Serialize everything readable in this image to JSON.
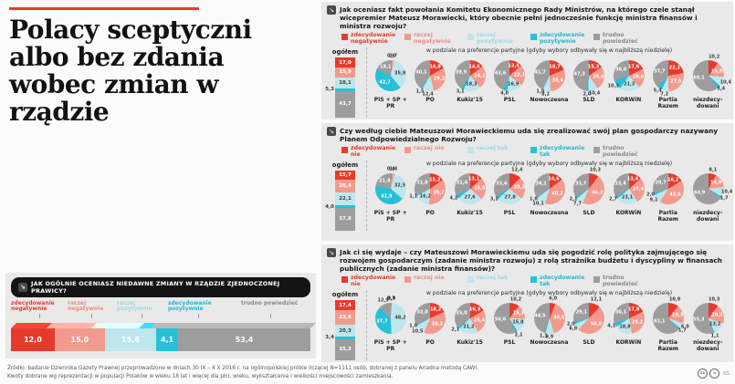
{
  "title": {
    "line1": "Polacy sceptyczni",
    "line2": "albo bez zdania",
    "line3": "wobec zmian w rządzie"
  },
  "colors": {
    "accent_red": "#e63b2c",
    "palette": [
      "#e63b2c",
      "#f29a8e",
      "#bfe6ec",
      "#25c1d9",
      "#9d9d9d"
    ],
    "legend_text": [
      "#e63b2c",
      "#ef8d80",
      "#9fd9e4",
      "#1fb9d2",
      "#8a8a8a"
    ],
    "panel_bg": "#e9e9e9",
    "header_pill_bg": "#141414"
  },
  "footer": {
    "line1": "Źródło: badanie Dziennika Gazety Prawnej przeprowadzone w dniach 30 IX – 4 X 2016 r. na ogólnopolskiej próbie liczącej N=1111 osób, dobranej z panelu Ariadna metodą CAWI.",
    "line2": "Kwoty dobrane wg reprezentacji w populacji Polaków w wieku 18 lat i więcej dla płci, wieku, wykształcenia i wielkości miejscowości zamieszkania.",
    "cc1": "cc",
    "cc2": "=",
    "credit": "NS"
  },
  "chart_data": [
    {
      "type": "bar",
      "title": "Jak ogólnie oceniasz niedawne zmiany w rządzie Zjednoczonej Prawicy?",
      "categories": [
        "zdecydowanie negatywnie",
        "raczej negatywnie",
        "raczej pozytywnie",
        "zdecydowanie pozytywnie",
        "trudno powiedzieć"
      ],
      "values": [
        12.0,
        15.0,
        15.6,
        4.1,
        53.4
      ],
      "xlabel": "",
      "ylabel": "",
      "legend_position": "top",
      "grid": false
    },
    {
      "type": "pie",
      "title": "Jak oceniasz fakt powołania Komitetu Ekonomicznego Rady Ministrów, na którego czele stanął wicepremier Mateusz Morawiecki, który obecnie pełni jednocześnie funkcję ministra finansów i ministra rozwoju?",
      "legend": [
        "zdecydowanie negatywnie",
        "raczej negatywnie",
        "raczej pozytywnie",
        "zdecydowanie pozytywnie",
        "trudno powiedzieć"
      ],
      "overall_label": "ogółem",
      "overall": [
        17.0,
        15.9,
        18.1,
        5.3,
        43.7
      ],
      "split_label": "w podziale na preferencje partyjne (gdyby wybory odbywały się w najbliższą niedzielę)",
      "categories": [
        "PiS + SP + PR",
        "PO",
        "Kukiz'15",
        "PSL",
        "Nowoczesna",
        "SLD",
        "KORWiN",
        "Partia Razem",
        "niezdecydowani"
      ],
      "series": [
        {
          "name": "PiS + SP + PR",
          "values": [
            0.6,
            2.7,
            35.9,
            42.7,
            18.1
          ]
        },
        {
          "name": "PO",
          "values": [
            16.8,
            29.2,
            12.4,
            1.5,
            40.1
          ]
        },
        {
          "name": "Kukiz'15",
          "values": [
            14.6,
            24.1,
            18.3,
            3.1,
            39.9
          ]
        },
        {
          "name": "PSL",
          "values": [
            13.4,
            22.1,
            16.9,
            4.0,
            43.6
          ]
        },
        {
          "name": "Nowoczesna",
          "values": [
            18.7,
            30.4,
            8.2,
            1.0,
            41.7
          ]
        },
        {
          "name": "SLD",
          "values": [
            15.3,
            25.0,
            10.4,
            2.0,
            47.3
          ]
        },
        {
          "name": "KORWiN",
          "values": [
            17.6,
            20.8,
            21.3,
            10.3,
            30.0
          ]
        },
        {
          "name": "Partia Razem",
          "values": [
            22.2,
            27.5,
            7.2,
            5.4,
            37.7
          ]
        },
        {
          "name": "niezdecy-dowani",
          "values": [
            10.2,
            15.9,
            10.4,
            3.4,
            60.1
          ]
        }
      ]
    },
    {
      "type": "pie",
      "title": "Czy według ciebie Mateuszowi Morawieckiemu uda się zrealizować swój plan gospodarczy nazywany Planem Odpowiedzialnego Rozwoju?",
      "legend": [
        "zdecydowanie nie",
        "raczej nie",
        "raczej tak",
        "zdecydowanie tak",
        "trudno powiedzieć"
      ],
      "overall_label": "ogółem",
      "overall": [
        15.7,
        20.4,
        22.1,
        4.0,
        37.8
      ],
      "split_label": "w podziale na preferencje partyjne (gdyby wybory odbywały się w najbliższą niedzielę)",
      "categories": [
        "PiS + SP + PR",
        "PO",
        "Kukiz'15",
        "PSL",
        "Nowoczesna",
        "SLD",
        "KORWiN",
        "Partia Razem",
        "niezdecydowani"
      ],
      "series": [
        {
          "name": "PiS + SP + PR",
          "values": [
            0.4,
            3.4,
            32.5,
            41.9,
            21.8
          ]
        },
        {
          "name": "PO",
          "values": [
            15.2,
            35.7,
            16.2,
            1.1,
            31.8
          ]
        },
        {
          "name": "Kukiz'15",
          "values": [
            13.1,
            23.5,
            27.6,
            4.2,
            31.6
          ]
        },
        {
          "name": "PSL",
          "values": [
            12.4,
            23.3,
            27.8,
            3.1,
            33.4
          ]
        },
        {
          "name": "Nowoczesna",
          "values": [
            14.6,
            40.2,
            10.1,
            1.0,
            34.1
          ]
        },
        {
          "name": "SLD",
          "values": [
            10.3,
            46.2,
            7.7,
            2.1,
            33.7
          ]
        },
        {
          "name": "KORWiN",
          "values": [
            13.4,
            27.4,
            23.1,
            2.7,
            33.4
          ]
        },
        {
          "name": "Partia Razem",
          "values": [
            16.2,
            43.0,
            9.1,
            2.0,
            29.7
          ]
        },
        {
          "name": "niezdecy-dowani",
          "values": [
            8.1,
            14.9,
            10.4,
            1.7,
            64.9
          ]
        }
      ]
    },
    {
      "type": "pie",
      "title": "Jak ci się wydaje – czy Mateuszowi Morawieckiemu uda się pogodzić rolę polityka zajmującego się rozwojem gospodarczym (zadanie ministra rozwoju) z rolą strażnika budżetu i dyscypliny w finansach publicznych (zadanie ministra finansów)?",
      "legend": [
        "zdecydowanie nie",
        "raczej nie",
        "raczej tak",
        "zdecydowanie tak",
        "trudno powiedzieć"
      ],
      "overall_label": "ogółem",
      "overall": [
        17.4,
        23.6,
        20.3,
        3.4,
        35.3
      ],
      "split_label": "w podziale na preferencje partyjne (gdyby wybory odbywały się w najbliższą niedzielę)",
      "categories": [
        "PiS + SP + PR",
        "PO",
        "Kukiz'15",
        "PSL",
        "Nowoczesna",
        "SLD",
        "KORWiN",
        "Partia Razem",
        "niezdecydowani"
      ],
      "series": [
        {
          "name": "PiS + SP + PR",
          "values": [
            0.3,
            0.9,
            48.2,
            37.7,
            12.9
          ]
        },
        {
          "name": "PO",
          "values": [
            18.2,
            38.3,
            10.5,
            1.0,
            32.0
          ]
        },
        {
          "name": "Kukiz'15",
          "values": [
            16.3,
            25.4,
            21.2,
            2.1,
            35.0
          ]
        },
        {
          "name": "PSL",
          "values": [
            10.2,
            15.3,
            15.8,
            2.1,
            56.6
          ]
        },
        {
          "name": "Nowoczesna",
          "values": [
            6.0,
            39.5,
            8.9,
            1.1,
            44.5
          ]
        },
        {
          "name": "SLD",
          "values": [
            12.1,
            50.0,
            6.8,
            2.0,
            29.1
          ]
        },
        {
          "name": "KORWiN",
          "values": [
            17.8,
            29.2,
            18.8,
            4.1,
            30.1
          ]
        },
        {
          "name": "Partia Razem",
          "values": [
            10.9,
            19.3,
            6.0,
            1.7,
            62.1
          ]
        },
        {
          "name": "niezdecy-dowani",
          "values": [
            10.3,
            20.1,
            13.2,
            1.1,
            55.3
          ]
        }
      ]
    }
  ]
}
